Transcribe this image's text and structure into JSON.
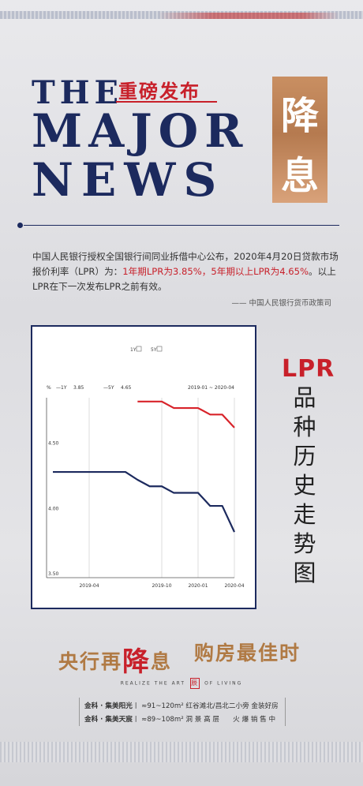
{
  "header": {
    "the": "THE",
    "major": "MAJOR",
    "news": "NEWS",
    "zhongbang": "重磅发布",
    "jiangxi_1": "降",
    "jiangxi_2": "息"
  },
  "intro": {
    "p1": "中国人民银行授权全国银行间同业拆借中心公布，2020年4月20日贷款市场报价利率（LPR）为：",
    "p2_red": "1年期LPR为3.85%，5年期以上LPR为4.65%",
    "p3": "。以上LPR在下一次发布LPR之前有效。",
    "source": "—— 中国人民银行货币政策司"
  },
  "chart_data": {
    "type": "line",
    "legend_checks": [
      "1Y",
      "5Y"
    ],
    "unit_label": "%",
    "legend": [
      {
        "name": "1Y",
        "latest": "3.85"
      },
      {
        "name": "5Y",
        "latest": "4.65"
      }
    ],
    "date_range": "2019-01 ~ 2020-04",
    "x_ticks": [
      "2019-04",
      "2019-10",
      "2020-01",
      "2020-04"
    ],
    "y_ticks": [
      "3.50",
      "4.00",
      "4.50"
    ],
    "ylim": [
      3.5,
      5.0
    ],
    "series": [
      {
        "name": "1Y",
        "color": "#1c2a5e",
        "points": [
          [
            "2019-01",
            4.31
          ],
          [
            "2019-02",
            4.31
          ],
          [
            "2019-03",
            4.31
          ],
          [
            "2019-04",
            4.31
          ],
          [
            "2019-05",
            4.31
          ],
          [
            "2019-06",
            4.31
          ],
          [
            "2019-07",
            4.31
          ],
          [
            "2019-08",
            4.25
          ],
          [
            "2019-09",
            4.2
          ],
          [
            "2019-10",
            4.2
          ],
          [
            "2019-11",
            4.15
          ],
          [
            "2019-12",
            4.15
          ],
          [
            "2020-01",
            4.15
          ],
          [
            "2020-02",
            4.05
          ],
          [
            "2020-03",
            4.05
          ],
          [
            "2020-04",
            3.85
          ]
        ]
      },
      {
        "name": "5Y",
        "color": "#d8232a",
        "points": [
          [
            "2019-08",
            4.85
          ],
          [
            "2019-09",
            4.85
          ],
          [
            "2019-10",
            4.85
          ],
          [
            "2019-11",
            4.8
          ],
          [
            "2019-12",
            4.8
          ],
          [
            "2020-01",
            4.8
          ],
          [
            "2020-02",
            4.75
          ],
          [
            "2020-03",
            4.75
          ],
          [
            "2020-04",
            4.65
          ]
        ]
      }
    ]
  },
  "side": {
    "lpr": "LPR",
    "vertical": [
      "品",
      "种",
      "历",
      "史",
      "走",
      "势",
      "图"
    ]
  },
  "slogan": {
    "left_a": "央行再",
    "left_big": "降",
    "left_b": "息",
    "right": "购房最佳时"
  },
  "tagline": {
    "left": "REALIZE THE ART",
    "seal": "辰",
    "right": "OF LIVING"
  },
  "info": {
    "row1_project": "金科 · 集美阳光",
    "row1_detail": "丨 ≈91~120m² 红谷滩北/昌北二小旁 金装好房",
    "row2_project": "金科 · 集美天宸",
    "row2_detail": "丨 ≈89~108m² 洞 景 高 层　　火 爆 销 售 中"
  },
  "colors": {
    "navy": "#1c2a5e",
    "red": "#c8202a",
    "gold": "#b07a44",
    "copper": "#c98f62"
  }
}
